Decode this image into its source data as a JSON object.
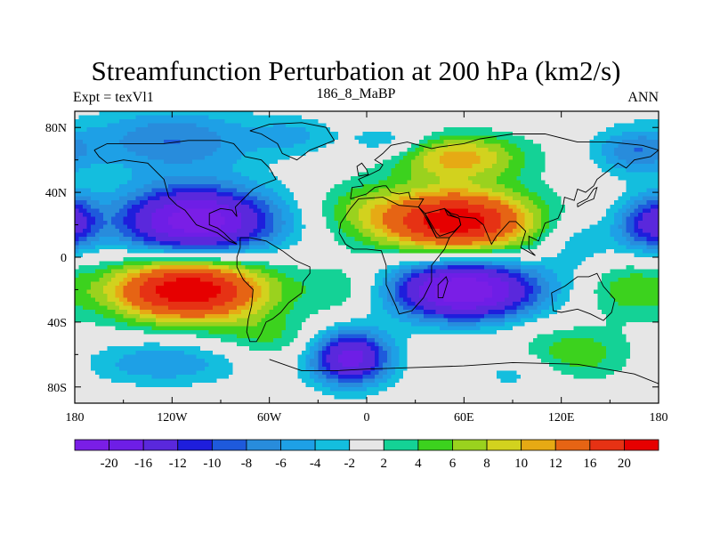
{
  "chart_data": {
    "type": "contour_map",
    "title": "Streamfunction Perturbation at 200 hPa (km2/s)",
    "left_label": "Expt = texVl1",
    "center_label": "186_8_MaBP",
    "right_label": "ANN",
    "xlim": [
      -180,
      180
    ],
    "ylim": [
      -90,
      90
    ],
    "x_ticks": [
      {
        "value": -180,
        "label": "180"
      },
      {
        "value": -120,
        "label": "120W"
      },
      {
        "value": -60,
        "label": "60W"
      },
      {
        "value": 0,
        "label": "0"
      },
      {
        "value": 60,
        "label": "60E"
      },
      {
        "value": 120,
        "label": "120E"
      },
      {
        "value": 180,
        "label": "180"
      }
    ],
    "y_ticks": [
      {
        "value": 80,
        "label": "80N"
      },
      {
        "value": 40,
        "label": "40N"
      },
      {
        "value": 0,
        "label": "0"
      },
      {
        "value": -40,
        "label": "40S"
      },
      {
        "value": -80,
        "label": "80S"
      }
    ],
    "levels": [
      -20,
      -16,
      -12,
      -10,
      -8,
      -6,
      -4,
      -2,
      2,
      4,
      6,
      8,
      10,
      12,
      16,
      20
    ],
    "colors": [
      "#7a1ee6",
      "#6e1ee6",
      "#5a28dc",
      "#1e1edc",
      "#1e5adc",
      "#288cdc",
      "#1ea0e6",
      "#14bede",
      "#e6e6e6",
      "#14d296",
      "#3cd21e",
      "#9ad21e",
      "#d2d21e",
      "#e6aa14",
      "#e66414",
      "#e63214",
      "#e60000"
    ],
    "colorbar_labels": [
      "-20",
      "-16",
      "-12",
      "-10",
      "-8",
      "-6",
      "-4",
      "-2",
      "2",
      "4",
      "6",
      "8",
      "10",
      "12",
      "16",
      "20"
    ],
    "features": [
      {
        "lon": -105,
        "lat": 22,
        "amp": -23,
        "slon": 34,
        "slat": 15
      },
      {
        "lon": 60,
        "lat": -20,
        "amp": -24,
        "slon": 32,
        "slat": 13
      },
      {
        "lon": -110,
        "lat": -20,
        "amp": 24,
        "slon": 34,
        "slat": 14
      },
      {
        "lon": 55,
        "lat": 22,
        "amp": 23,
        "slon": 34,
        "slat": 14
      },
      {
        "lon": -10,
        "lat": -62,
        "amp": -18,
        "slon": 17,
        "slat": 12
      },
      {
        "lon": 55,
        "lat": 62,
        "amp": 11,
        "slon": 30,
        "slat": 10
      },
      {
        "lon": 125,
        "lat": -60,
        "amp": 6,
        "slon": 28,
        "slat": 12
      },
      {
        "lon": -120,
        "lat": 72,
        "amp": -8,
        "slon": 38,
        "slat": 14
      },
      {
        "lon": -125,
        "lat": -65,
        "amp": -6,
        "slon": 34,
        "slat": 10
      },
      {
        "lon": 168,
        "lat": 20,
        "amp": -8,
        "slon": 12,
        "slat": 12
      },
      {
        "lon": -178,
        "lat": 22,
        "amp": -8,
        "slon": 10,
        "slat": 12
      },
      {
        "lon": 165,
        "lat": 65,
        "amp": -7,
        "slon": 18,
        "slat": 10
      },
      {
        "lon": 15,
        "lat": 70,
        "amp": -5,
        "slon": 18,
        "slat": 8
      },
      {
        "lon": -5,
        "lat": 30,
        "amp": 4,
        "slon": 22,
        "slat": 12
      },
      {
        "lon": -12,
        "lat": -20,
        "amp": 4,
        "slon": 20,
        "slat": 12
      },
      {
        "lon": 130,
        "lat": 10,
        "amp": -4,
        "slon": 16,
        "slat": 12
      },
      {
        "lon": 160,
        "lat": -20,
        "amp": 5,
        "slon": 18,
        "slat": 12
      },
      {
        "lon": -60,
        "lat": -50,
        "amp": 4,
        "slon": 22,
        "slat": 10
      },
      {
        "lon": -45,
        "lat": 75,
        "amp": -4,
        "slon": 18,
        "slat": 8
      },
      {
        "lon": 95,
        "lat": -70,
        "amp": -4,
        "slon": 20,
        "slat": 10
      }
    ],
    "continents": [
      {
        "name": "south-america",
        "coords": [
          [
            -78,
            12
          ],
          [
            -72,
            12
          ],
          [
            -62,
            10
          ],
          [
            -52,
            4
          ],
          [
            -44,
            -2
          ],
          [
            -35,
            -6
          ],
          [
            -35,
            -10
          ],
          [
            -39,
            -15
          ],
          [
            -40,
            -22
          ],
          [
            -48,
            -28
          ],
          [
            -53,
            -34
          ],
          [
            -58,
            -38
          ],
          [
            -62,
            -40
          ],
          [
            -65,
            -47
          ],
          [
            -68,
            -52
          ],
          [
            -72,
            -52
          ],
          [
            -74,
            -46
          ],
          [
            -73,
            -38
          ],
          [
            -71,
            -30
          ],
          [
            -70,
            -20
          ],
          [
            -76,
            -14
          ],
          [
            -80,
            -6
          ],
          [
            -80,
            0
          ],
          [
            -78,
            6
          ],
          [
            -78,
            12
          ]
        ]
      },
      {
        "name": "africa",
        "coords": [
          [
            -17,
            15
          ],
          [
            -16,
            21
          ],
          [
            -10,
            30
          ],
          [
            -5,
            36
          ],
          [
            10,
            37
          ],
          [
            20,
            32
          ],
          [
            32,
            31
          ],
          [
            35,
            27
          ],
          [
            43,
            12
          ],
          [
            51,
            12
          ],
          [
            48,
            5
          ],
          [
            40,
            -5
          ],
          [
            40,
            -15
          ],
          [
            35,
            -25
          ],
          [
            28,
            -33
          ],
          [
            20,
            -35
          ],
          [
            18,
            -30
          ],
          [
            12,
            -17
          ],
          [
            12,
            -5
          ],
          [
            9,
            4
          ],
          [
            0,
            5
          ],
          [
            -8,
            5
          ],
          [
            -13,
            8
          ],
          [
            -17,
            15
          ]
        ]
      },
      {
        "name": "eurasia",
        "coords": [
          [
            -10,
            36
          ],
          [
            -9,
            43
          ],
          [
            -2,
            44
          ],
          [
            -5,
            48
          ],
          [
            2,
            51
          ],
          [
            8,
            54
          ],
          [
            10,
            57
          ],
          [
            5,
            60
          ],
          [
            10,
            64
          ],
          [
            15,
            69
          ],
          [
            25,
            71
          ],
          [
            40,
            67
          ],
          [
            45,
            68
          ],
          [
            60,
            70
          ],
          [
            70,
            73
          ],
          [
            90,
            76
          ],
          [
            110,
            76
          ],
          [
            130,
            71
          ],
          [
            150,
            71
          ],
          [
            160,
            70
          ],
          [
            170,
            69
          ],
          [
            180,
            66
          ],
          [
            175,
            62
          ],
          [
            165,
            60
          ],
          [
            160,
            55
          ],
          [
            155,
            58
          ],
          [
            142,
            48
          ],
          [
            140,
            44
          ],
          [
            135,
            40
          ],
          [
            130,
            42
          ],
          [
            128,
            35
          ],
          [
            122,
            37
          ],
          [
            121,
            31
          ],
          [
            118,
            24
          ],
          [
            110,
            21
          ],
          [
            106,
            10
          ],
          [
            100,
            13
          ],
          [
            100,
            5
          ],
          [
            104,
            1
          ],
          [
            95,
            6
          ],
          [
            98,
            16
          ],
          [
            92,
            22
          ],
          [
            88,
            22
          ],
          [
            80,
            13
          ],
          [
            77,
            8
          ],
          [
            72,
            20
          ],
          [
            67,
            24
          ],
          [
            57,
            25
          ],
          [
            56,
            26
          ],
          [
            52,
            27
          ],
          [
            48,
            30
          ],
          [
            50,
            26
          ],
          [
            57,
            24
          ],
          [
            58,
            20
          ],
          [
            54,
            16
          ],
          [
            45,
            13
          ],
          [
            43,
            15
          ],
          [
            36,
            27
          ],
          [
            32,
            31
          ],
          [
            35,
            36
          ],
          [
            27,
            36
          ],
          [
            26,
            40
          ],
          [
            20,
            39
          ],
          [
            15,
            40
          ],
          [
            12,
            44
          ],
          [
            10,
            44
          ],
          [
            5,
            43
          ],
          [
            0,
            39
          ],
          [
            -10,
            36
          ]
        ]
      },
      {
        "name": "north-america",
        "coords": [
          [
            -168,
            66
          ],
          [
            -160,
            70
          ],
          [
            -140,
            70
          ],
          [
            -125,
            70
          ],
          [
            -110,
            72
          ],
          [
            -90,
            72
          ],
          [
            -82,
            70
          ],
          [
            -75,
            62
          ],
          [
            -65,
            60
          ],
          [
            -60,
            55
          ],
          [
            -56,
            48
          ],
          [
            -64,
            45
          ],
          [
            -70,
            42
          ],
          [
            -76,
            36
          ],
          [
            -81,
            31
          ],
          [
            -80,
            25
          ],
          [
            -83,
            29
          ],
          [
            -90,
            30
          ],
          [
            -97,
            27
          ],
          [
            -97,
            20
          ],
          [
            -92,
            18
          ],
          [
            -88,
            15
          ],
          [
            -84,
            11
          ],
          [
            -80,
            8
          ],
          [
            -85,
            10
          ],
          [
            -92,
            15
          ],
          [
            -105,
            20
          ],
          [
            -112,
            29
          ],
          [
            -117,
            32
          ],
          [
            -122,
            37
          ],
          [
            -125,
            48
          ],
          [
            -135,
            58
          ],
          [
            -150,
            60
          ],
          [
            -160,
            58
          ],
          [
            -165,
            62
          ],
          [
            -168,
            66
          ]
        ]
      },
      {
        "name": "greenland",
        "coords": [
          [
            -72,
            78
          ],
          [
            -60,
            82
          ],
          [
            -40,
            83
          ],
          [
            -25,
            80
          ],
          [
            -20,
            72
          ],
          [
            -35,
            66
          ],
          [
            -43,
            60
          ],
          [
            -52,
            64
          ],
          [
            -55,
            70
          ],
          [
            -65,
            76
          ],
          [
            -72,
            78
          ]
        ]
      },
      {
        "name": "australia",
        "coords": [
          [
            114,
            -22
          ],
          [
            122,
            -18
          ],
          [
            130,
            -12
          ],
          [
            137,
            -12
          ],
          [
            142,
            -10
          ],
          [
            146,
            -18
          ],
          [
            153,
            -26
          ],
          [
            151,
            -34
          ],
          [
            146,
            -39
          ],
          [
            138,
            -35
          ],
          [
            130,
            -32
          ],
          [
            120,
            -34
          ],
          [
            115,
            -33
          ],
          [
            114,
            -22
          ]
        ]
      },
      {
        "name": "antarctica",
        "coords": [
          [
            -60,
            -63
          ],
          [
            -40,
            -70
          ],
          [
            -20,
            -70
          ],
          [
            0,
            -69
          ],
          [
            30,
            -68
          ],
          [
            60,
            -67
          ],
          [
            90,
            -65
          ],
          [
            130,
            -66
          ],
          [
            165,
            -72
          ],
          [
            180,
            -78
          ]
        ]
      },
      {
        "name": "madagascar",
        "coords": [
          [
            44,
            -25
          ],
          [
            47,
            -25
          ],
          [
            50,
            -15
          ],
          [
            49,
            -12
          ],
          [
            44,
            -17
          ],
          [
            44,
            -25
          ]
        ]
      },
      {
        "name": "uk",
        "coords": [
          [
            -5,
            50
          ],
          [
            1,
            51
          ],
          [
            0,
            54
          ],
          [
            -3,
            58
          ],
          [
            -6,
            56
          ],
          [
            -5,
            50
          ]
        ]
      },
      {
        "name": "japan",
        "coords": [
          [
            130,
            31
          ],
          [
            135,
            34
          ],
          [
            140,
            36
          ],
          [
            142,
            43
          ],
          [
            140,
            42
          ],
          [
            136,
            36
          ],
          [
            130,
            33
          ],
          [
            130,
            31
          ]
        ]
      },
      {
        "name": "arabia",
        "coords": [
          [
            36,
            27
          ],
          [
            43,
            12
          ],
          [
            51,
            12
          ],
          [
            58,
            20
          ],
          [
            57,
            24
          ],
          [
            52,
            26
          ],
          [
            48,
            30
          ],
          [
            36,
            27
          ]
        ]
      }
    ]
  }
}
